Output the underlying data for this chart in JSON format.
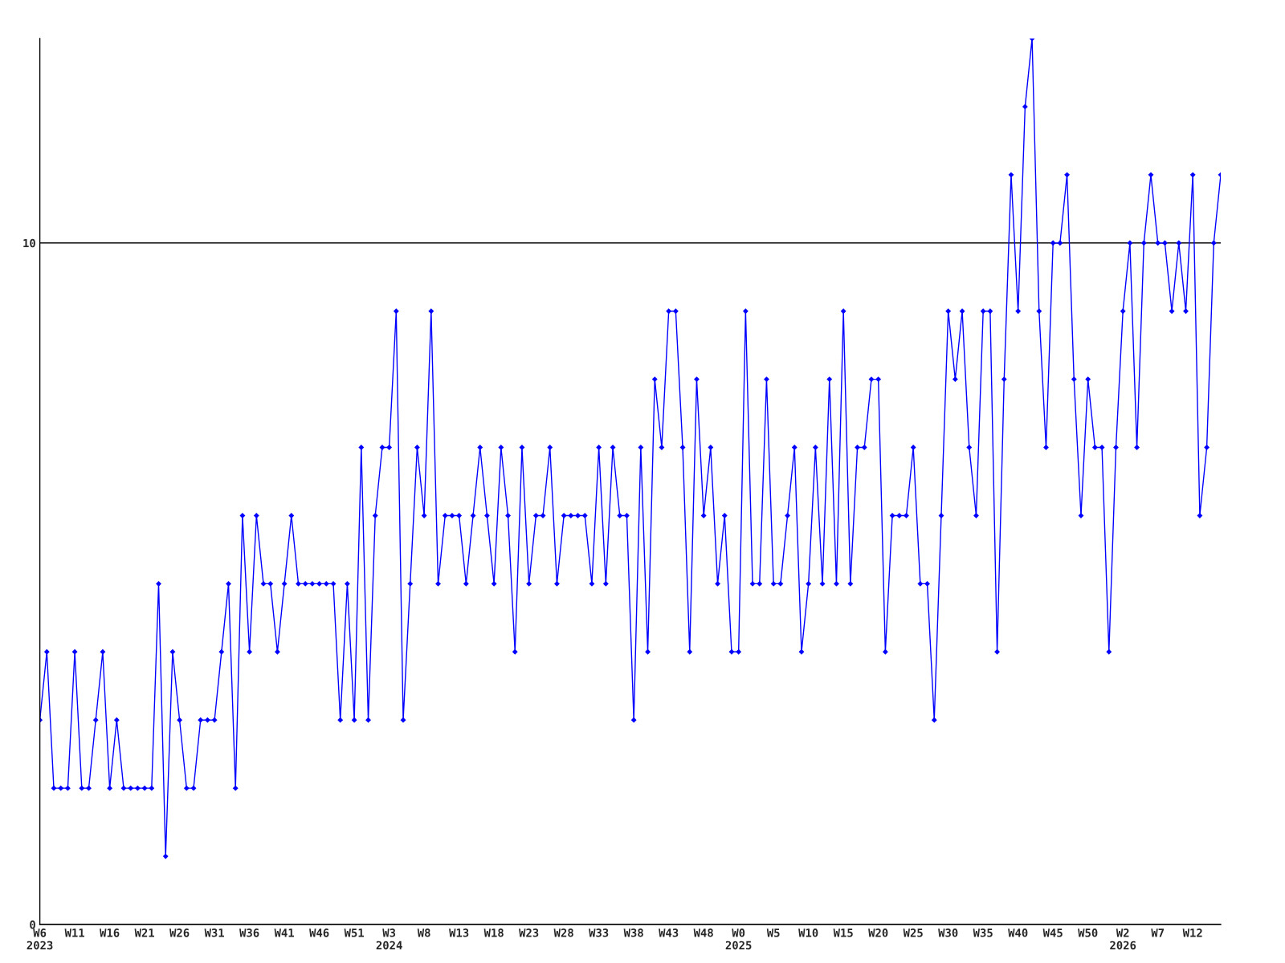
{
  "chart_data": {
    "type": "line",
    "categories": [
      "W6\n2023",
      null,
      null,
      null,
      null,
      "W11",
      null,
      null,
      null,
      null,
      "W16",
      null,
      null,
      null,
      null,
      "W21",
      null,
      null,
      null,
      null,
      "W26",
      null,
      null,
      null,
      null,
      "W31",
      null,
      null,
      null,
      null,
      "W36",
      null,
      null,
      null,
      null,
      "W41",
      null,
      null,
      null,
      null,
      "W46",
      null,
      null,
      null,
      null,
      "W51",
      null,
      null,
      null,
      null,
      "W3\n2024",
      null,
      null,
      null,
      null,
      "W8",
      null,
      null,
      null,
      null,
      "W13",
      null,
      null,
      null,
      null,
      "W18",
      null,
      null,
      null,
      null,
      "W23",
      null,
      null,
      null,
      null,
      "W28",
      null,
      null,
      null,
      null,
      "W33",
      null,
      null,
      null,
      null,
      "W38",
      null,
      null,
      null,
      null,
      "W43",
      null,
      null,
      null,
      null,
      "W48",
      null,
      null,
      null,
      null,
      "W0\n2025",
      null,
      null,
      null,
      null,
      "W5",
      null,
      null,
      null,
      null,
      "W10",
      null,
      null,
      null,
      null,
      "W15",
      null,
      null,
      null,
      null,
      "W20",
      null,
      null,
      null,
      null,
      "W25",
      null,
      null,
      null,
      null,
      "W30",
      null,
      null,
      null,
      null,
      "W35",
      null,
      null,
      null,
      null,
      "W40",
      null,
      null,
      null,
      null,
      "W45",
      null,
      null,
      null,
      null,
      "W50",
      null,
      null,
      null,
      null,
      "W2\n2026",
      null,
      null,
      null,
      null,
      "W7",
      null,
      null,
      null,
      null,
      "W12",
      null,
      null,
      null,
      null
    ],
    "series": [
      {
        "color": "#0000ff",
        "values": [
          3,
          4,
          2,
          2,
          2,
          4,
          2,
          2,
          3,
          4,
          2,
          3,
          2,
          2,
          2,
          2,
          2,
          5,
          1,
          4,
          3,
          2,
          2,
          3,
          3,
          3,
          4,
          5,
          2,
          6,
          4,
          6,
          5,
          5,
          4,
          5,
          6,
          5,
          5,
          5,
          5,
          5,
          5,
          3,
          5,
          3,
          7,
          3,
          6,
          7,
          7,
          9,
          3,
          5,
          7,
          6,
          9,
          5,
          6,
          6,
          6,
          5,
          6,
          7,
          6,
          5,
          7,
          6,
          4,
          7,
          5,
          6,
          6,
          7,
          5,
          6,
          6,
          6,
          6,
          5,
          7,
          5,
          7,
          6,
          6,
          3,
          7,
          4,
          8,
          7,
          9,
          9,
          7,
          4,
          8,
          6,
          7,
          5,
          6,
          4,
          4,
          9,
          5,
          5,
          8,
          5,
          5,
          6,
          7,
          4,
          5,
          7,
          5,
          8,
          5,
          9,
          5,
          7,
          7,
          8,
          8,
          4,
          6,
          6,
          6,
          7,
          5,
          5,
          3,
          6,
          9,
          8,
          9,
          7,
          6,
          9,
          9,
          4,
          8,
          11,
          9,
          12,
          13,
          9,
          7,
          10,
          10,
          11,
          8,
          6,
          8,
          7,
          7,
          4,
          7,
          9,
          10,
          7,
          10,
          11,
          10,
          10,
          9,
          10,
          9,
          11,
          6,
          7,
          10,
          11
        ]
      }
    ],
    "ylim": [
      0,
      13
    ],
    "yticks": [
      0,
      10
    ],
    "grid": "y",
    "marker": "diamond",
    "line_style": "solid"
  }
}
